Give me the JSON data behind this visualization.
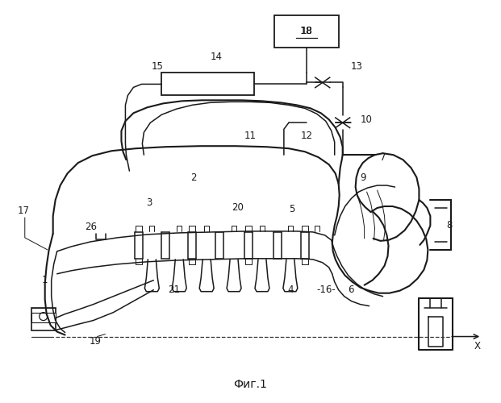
{
  "bg_color": "#ffffff",
  "line_color": "#1a1a1a",
  "fig_label": "Фиг.1",
  "label_fs": 8.5,
  "fig_label_fs": 10
}
